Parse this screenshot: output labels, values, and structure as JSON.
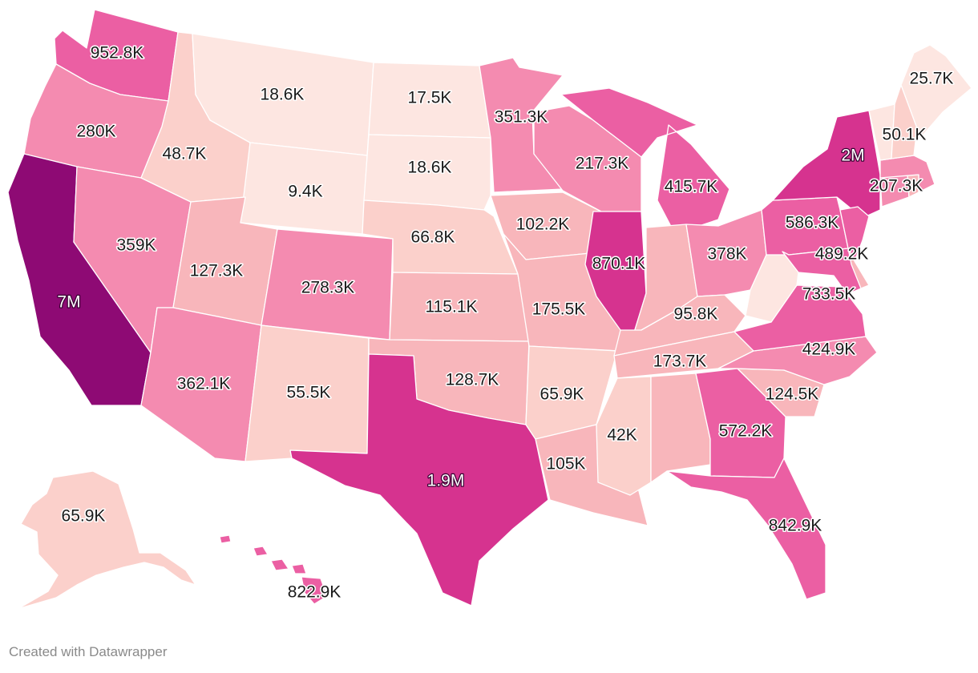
{
  "credit": "Created with Datawrapper",
  "colors": {
    "scale": [
      "#fde6e1",
      "#fbd0cb",
      "#f8b6bb",
      "#f48bb0",
      "#eb5fa3",
      "#d6338f",
      "#8e0a74"
    ],
    "border": "#ffffff",
    "label": "#1a1a1a"
  },
  "states": [
    {
      "code": "WA",
      "label": "952.8K"
    },
    {
      "code": "OR",
      "label": "280K"
    },
    {
      "code": "CA",
      "label": "7M"
    },
    {
      "code": "NV",
      "label": "359K"
    },
    {
      "code": "ID",
      "label": "48.7K"
    },
    {
      "code": "MT",
      "label": "18.6K"
    },
    {
      "code": "WY",
      "label": "9.4K"
    },
    {
      "code": "UT",
      "label": "127.3K"
    },
    {
      "code": "AZ",
      "label": "362.1K"
    },
    {
      "code": "CO",
      "label": "278.3K"
    },
    {
      "code": "NM",
      "label": "55.5K"
    },
    {
      "code": "ND",
      "label": "17.5K"
    },
    {
      "code": "SD",
      "label": "18.6K"
    },
    {
      "code": "NE",
      "label": "66.8K"
    },
    {
      "code": "KS",
      "label": "115.1K"
    },
    {
      "code": "OK",
      "label": "128.7K"
    },
    {
      "code": "TX",
      "label": "1.9M"
    },
    {
      "code": "MN",
      "label": "351.3K"
    },
    {
      "code": "IA",
      "label": "102.2K"
    },
    {
      "code": "MO",
      "label": "175.5K"
    },
    {
      "code": "AR",
      "label": "65.9K"
    },
    {
      "code": "LA",
      "label": "105K"
    },
    {
      "code": "WI",
      "label": "217.3K"
    },
    {
      "code": "IL",
      "label": "870.1K"
    },
    {
      "code": "MI",
      "label": "415.7K"
    },
    {
      "code": "IN",
      "label": ""
    },
    {
      "code": "OH",
      "label": "378K"
    },
    {
      "code": "KY",
      "label": "95.8K"
    },
    {
      "code": "TN",
      "label": "173.7K"
    },
    {
      "code": "MS",
      "label": "42K"
    },
    {
      "code": "AL",
      "label": ""
    },
    {
      "code": "GA",
      "label": "572.2K"
    },
    {
      "code": "FL",
      "label": "842.9K"
    },
    {
      "code": "SC",
      "label": "124.5K"
    },
    {
      "code": "NC",
      "label": "424.9K"
    },
    {
      "code": "VA",
      "label": "733.5K"
    },
    {
      "code": "WV",
      "label": ""
    },
    {
      "code": "PA",
      "label": "586.3K"
    },
    {
      "code": "NY",
      "label": "2M"
    },
    {
      "code": "NJ",
      "label": ""
    },
    {
      "code": "MD",
      "label": "489.2K"
    },
    {
      "code": "DE",
      "label": ""
    },
    {
      "code": "CT",
      "label": ""
    },
    {
      "code": "RI",
      "label": ""
    },
    {
      "code": "MA",
      "label": "207.3K"
    },
    {
      "code": "VT",
      "label": ""
    },
    {
      "code": "NH",
      "label": "50.1K"
    },
    {
      "code": "ME",
      "label": "25.7K"
    },
    {
      "code": "AK",
      "label": "65.9K"
    },
    {
      "code": "HI",
      "label": "822.9K"
    }
  ]
}
